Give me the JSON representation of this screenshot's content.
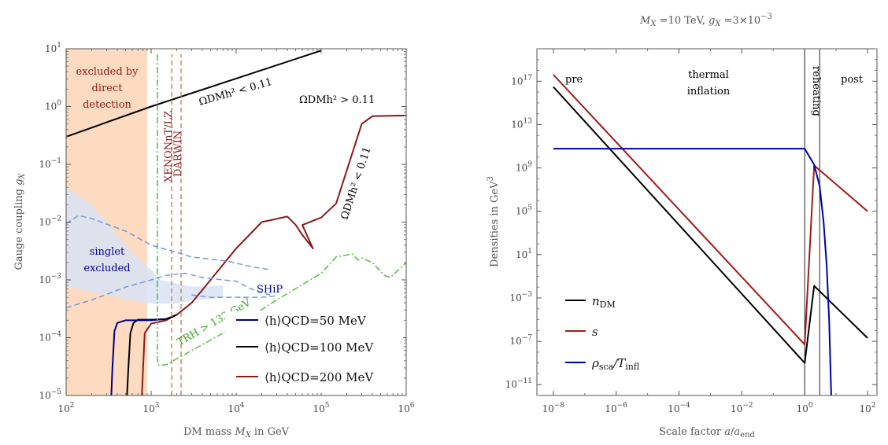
{
  "chart_data": [
    {
      "type": "line",
      "xlabel": "DM mass M_X in GeV",
      "ylabel": "Gauge coupling g_X",
      "xscale": "log",
      "yscale": "log",
      "xlim": [
        100,
        1000000
      ],
      "ylim": [
        1e-05,
        10
      ],
      "x_ticks": [
        "10^2",
        "10^3",
        "10^4",
        "10^5",
        "10^6"
      ],
      "y_ticks": [
        "10^-5",
        "10^-4",
        "10^-3",
        "10^-2",
        "10^-1",
        "10^0",
        "10^1"
      ],
      "colors": {
        "direct": "#fcd9bd",
        "singlet": "#d9e2f3",
        "relic_upper": "#000000",
        "h50": "#000080",
        "h100": "#000000",
        "h200": "#8b1a1a",
        "trh": "#55bb44",
        "xenon": "#cc8866",
        "ship": "#7799dd",
        "direct_text": "#8b1a1a",
        "singlet_text": "#000099",
        "ship_text": "#000099"
      },
      "regions": {
        "direct_detection": {
          "label_lines": [
            "excluded by",
            "direct",
            "detection"
          ],
          "x_range": [
            100,
            900
          ]
        },
        "singlet_excluded": {
          "label_lines": [
            "singlet",
            "excluded"
          ],
          "x": [
            100,
            900,
            1200,
            2000,
            3000,
            5000,
            7000,
            7000,
            3000,
            1300,
            1000,
            600,
            400,
            200,
            100
          ],
          "y": [
            0.000773,
            0.00039,
            0.00039,
            0.000386,
            0.00045,
            0.000458,
            0.0005,
            0.0008,
            0.000758,
            0.000984,
            0.0015,
            0.003,
            0.006,
            0.02,
            0.04
          ]
        }
      },
      "series": [
        {
          "name": "",
          "id": "relic_upper",
          "x": [
            100,
            1000,
            100000
          ],
          "y": [
            0.3,
            1.0,
            9.3
          ]
        },
        {
          "name": "⟨h⟩QCD=200 MeV",
          "id": "h200",
          "x": [
            780,
            800,
            840,
            1000,
            1500,
            2000,
            3000,
            5000,
            10000,
            20000,
            40000,
            50000,
            60000,
            70000,
            80000,
            60000,
            100000,
            150000,
            300000,
            400000,
            1000000
          ],
          "y": [
            1e-05,
            2.5e-05,
            0.00012,
            0.000175,
            0.0002,
            0.00025,
            0.0004,
            0.001,
            0.0035,
            0.01,
            0.0125,
            0.009,
            0.006,
            0.0045,
            0.0035,
            0.0089,
            0.012,
            0.021,
            0.5,
            0.68,
            0.7
          ]
        },
        {
          "name": "⟨h⟩QCD=100 MeV",
          "id": "h100",
          "x": [
            520,
            540,
            570,
            620,
            700,
            1000,
            1500,
            2000
          ],
          "y": [
            1e-05,
            3e-05,
            0.00012,
            0.00018,
            0.000205,
            0.000205,
            0.00021,
            0.00025
          ]
        },
        {
          "name": "⟨h⟩QCD=50 MeV",
          "id": "h50",
          "x": [
            340,
            350,
            370,
            400,
            500,
            1000,
            1500
          ],
          "y": [
            1e-05,
            3e-05,
            0.00013,
            0.00018,
            0.0002,
            0.0002,
            0.00021
          ]
        },
        {
          "name": "",
          "id": "xenon1",
          "x": [
            1750,
            1750
          ],
          "y": [
            1e-05,
            8
          ]
        },
        {
          "name": "",
          "id": "xenon2",
          "x": [
            2250,
            2250
          ],
          "y": [
            1e-05,
            8
          ]
        },
        {
          "name": "",
          "id": "singlet_upper",
          "x": [
            100,
            140,
            200,
            500,
            1000,
            3000,
            8000,
            15000,
            25000
          ],
          "y": [
            0.0094,
            0.013,
            0.0115,
            0.007,
            0.004,
            0.0025,
            0.0021,
            0.0017,
            0.0015
          ]
        },
        {
          "name": "",
          "id": "singlet_lower",
          "x": [
            100,
            200,
            500,
            1000,
            1500,
            2500,
            4000,
            7000,
            10000,
            15000,
            20000,
            25000
          ],
          "y": [
            0.00033,
            0.00045,
            0.00075,
            0.001,
            0.0012,
            0.0013,
            0.0011,
            0.001,
            0.00095,
            0.0007,
            0.0006,
            0.00055
          ]
        },
        {
          "name": "",
          "id": "ship_curve",
          "x": [
            3000,
            5000,
            10000,
            20000,
            30000
          ],
          "y": [
            0.00055,
            0.0005,
            0.0005,
            0.0005,
            0.00053
          ]
        },
        {
          "name": "",
          "id": "trh",
          "x": [
            1180,
            1180,
            1180,
            1250,
            1500,
            3000,
            10000,
            30000,
            100000,
            150000,
            230000,
            250000,
            270000,
            300000,
            400000,
            500000,
            550000,
            650000,
            1000000
          ],
          "y": [
            8,
            0.001,
            3.5e-05,
            3.3e-05,
            3.4e-05,
            6e-05,
            0.00016,
            0.00045,
            0.0013,
            0.0025,
            0.0028,
            0.0025,
            0.0022,
            0.0024,
            0.002,
            0.0014,
            0.0012,
            0.0011,
            0.002
          ]
        }
      ],
      "annotations": {
        "relic_below": "ΩDMh² < 0.11",
        "relic_above": "ΩDMh² > 0.11",
        "relic_diag": "ΩDMh² < 0.11",
        "xenon_1": "XENONnT/LZ",
        "xenon_2": "DARWIN",
        "ship": "SHiP",
        "trh": "TRH > 132 GeV"
      }
    },
    {
      "type": "line",
      "title": "M_X =10 TeV, g_X =3×10^-3",
      "xlabel": "Scale factor a/a_end",
      "ylabel": "Densities in GeV³",
      "xscale": "log",
      "yscale": "log",
      "xlim": [
        3e-09,
        200
      ],
      "ylim": [
        1e-12,
        1e+20
      ],
      "x_ticks": [
        "10^-8",
        "10^-6",
        "10^-4",
        "10^-2",
        "10^0",
        "10^2"
      ],
      "y_ticks": [
        "10^-11",
        "10^-7",
        "10^-3",
        "10^1",
        "10^5",
        "10^9",
        "10^13",
        "10^17"
      ],
      "phases": [
        "pre",
        "thermal inflation",
        "reheating",
        "post"
      ],
      "phase_boundaries": [
        1,
        3
      ],
      "colors": {
        "n_DM": "#000000",
        "s": "#a31a1a",
        "rho": "#0000aa"
      },
      "series": [
        {
          "name": "n_DM",
          "id": "n_DM",
          "x": [
            1e-08,
            1,
            2,
            100
          ],
          "y": [
            3e+16,
            1e-09,
            0.013,
            2e-07
          ]
        },
        {
          "name": "s",
          "id": "s",
          "x": [
            1e-08,
            1,
            2,
            100
          ],
          "y": [
            4e+17,
            5e-08,
            1700000000.0,
            100000.0
          ]
        },
        {
          "name": "ρsca/Tinfl",
          "id": "rho",
          "x": [
            1e-08,
            1,
            2,
            3,
            4,
            5,
            6,
            7
          ],
          "y": [
            60000000000.0,
            60000000000.0,
            2000000000.0,
            20000000.0,
            10000.0,
            1.0,
            1e-05,
            1e-12
          ]
        }
      ]
    }
  ]
}
